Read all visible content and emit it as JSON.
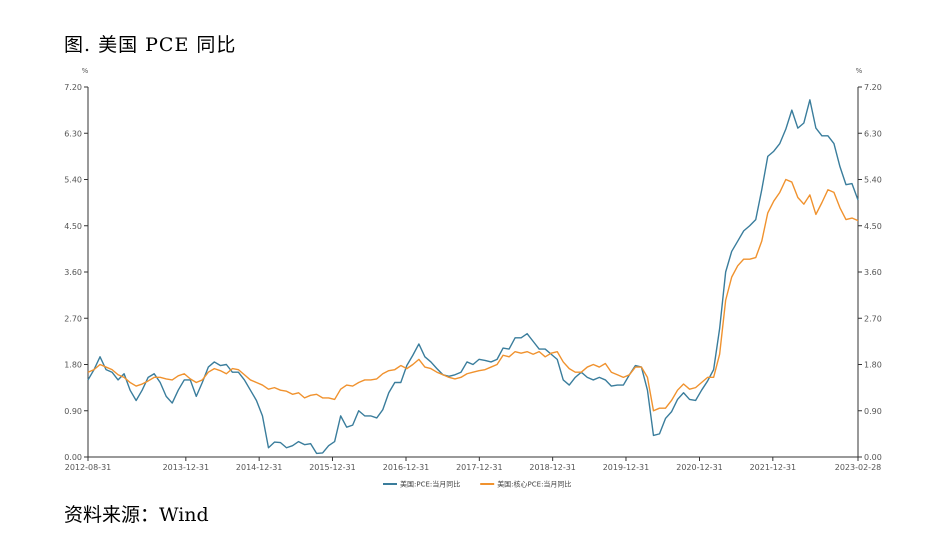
{
  "figure": {
    "title": "图. 美国 PCE 同比",
    "source": "资料来源：Wind"
  },
  "chart_data": {
    "type": "line",
    "y_unit": "%",
    "ylim": [
      0,
      7.2
    ],
    "y_ticks": [
      "0.00",
      "0.90",
      "1.80",
      "2.70",
      "3.60",
      "4.50",
      "5.40",
      "6.30",
      "7.20"
    ],
    "x_range": [
      "2012-08-31",
      "2023-02-28"
    ],
    "x_ticks": [
      "2012-08-31",
      "2013-12-31",
      "2014-12-31",
      "2015-12-31",
      "2016-12-31",
      "2017-12-31",
      "2018-12-31",
      "2019-12-31",
      "2020-12-31",
      "2021-12-31",
      "2023-02-28"
    ],
    "legend_position": "bottom",
    "grid": false,
    "series": [
      {
        "name": "美国:PCE:当月同比",
        "color": "#3a7d9c",
        "values": [
          1.5,
          1.7,
          1.95,
          1.7,
          1.65,
          1.5,
          1.62,
          1.3,
          1.1,
          1.3,
          1.55,
          1.62,
          1.45,
          1.18,
          1.05,
          1.3,
          1.5,
          1.5,
          1.18,
          1.45,
          1.75,
          1.85,
          1.78,
          1.8,
          1.65,
          1.65,
          1.5,
          1.3,
          1.1,
          0.8,
          0.18,
          0.29,
          0.28,
          0.18,
          0.22,
          0.3,
          0.24,
          0.26,
          0.07,
          0.08,
          0.22,
          0.3,
          0.8,
          0.58,
          0.62,
          0.9,
          0.8,
          0.8,
          0.76,
          0.92,
          1.25,
          1.45,
          1.45,
          1.78,
          1.98,
          2.2,
          1.95,
          1.85,
          1.72,
          1.6,
          1.57,
          1.6,
          1.65,
          1.85,
          1.8,
          1.9,
          1.88,
          1.85,
          1.9,
          2.12,
          2.1,
          2.32,
          2.32,
          2.4,
          2.25,
          2.1,
          2.1,
          2.0,
          1.9,
          1.5,
          1.4,
          1.55,
          1.65,
          1.55,
          1.5,
          1.55,
          1.5,
          1.38,
          1.4,
          1.4,
          1.6,
          1.78,
          1.75,
          1.3,
          0.42,
          0.45,
          0.75,
          0.88,
          1.12,
          1.25,
          1.12,
          1.1,
          1.3,
          1.48,
          1.7,
          2.5,
          3.6,
          4.0,
          4.2,
          4.4,
          4.5,
          4.62,
          5.2,
          5.85,
          5.95,
          6.1,
          6.38,
          6.75,
          6.4,
          6.5,
          6.95,
          6.4,
          6.25,
          6.25,
          6.1,
          5.65,
          5.3,
          5.32,
          5.0
        ]
      },
      {
        "name": "美国:核心PCE:当月同比",
        "color": "#f0922e",
        "values": [
          1.65,
          1.7,
          1.8,
          1.75,
          1.7,
          1.6,
          1.55,
          1.45,
          1.38,
          1.42,
          1.48,
          1.55,
          1.55,
          1.52,
          1.5,
          1.58,
          1.62,
          1.52,
          1.45,
          1.5,
          1.65,
          1.72,
          1.68,
          1.62,
          1.72,
          1.7,
          1.6,
          1.5,
          1.45,
          1.4,
          1.32,
          1.35,
          1.3,
          1.28,
          1.22,
          1.25,
          1.15,
          1.2,
          1.22,
          1.15,
          1.15,
          1.12,
          1.32,
          1.4,
          1.38,
          1.45,
          1.5,
          1.5,
          1.52,
          1.62,
          1.68,
          1.7,
          1.78,
          1.72,
          1.8,
          1.9,
          1.75,
          1.72,
          1.65,
          1.6,
          1.55,
          1.52,
          1.55,
          1.62,
          1.65,
          1.68,
          1.7,
          1.75,
          1.8,
          1.98,
          1.95,
          2.05,
          2.02,
          2.05,
          2.0,
          2.05,
          1.95,
          2.02,
          2.05,
          1.85,
          1.72,
          1.65,
          1.65,
          1.75,
          1.8,
          1.75,
          1.82,
          1.65,
          1.6,
          1.55,
          1.6,
          1.75,
          1.75,
          1.55,
          0.9,
          0.95,
          0.95,
          1.1,
          1.3,
          1.42,
          1.32,
          1.35,
          1.45,
          1.55,
          1.55,
          2.0,
          3.05,
          3.5,
          3.72,
          3.85,
          3.85,
          3.88,
          4.2,
          4.75,
          4.98,
          5.15,
          5.4,
          5.35,
          5.05,
          4.92,
          5.1,
          4.72,
          4.95,
          5.2,
          5.15,
          4.85,
          4.62,
          4.65,
          4.6
        ]
      }
    ]
  }
}
